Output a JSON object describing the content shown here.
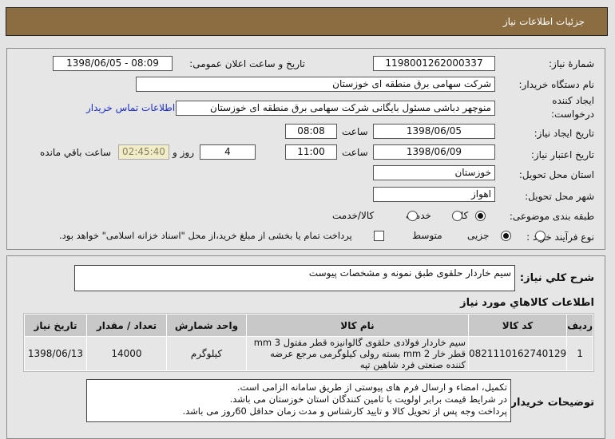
{
  "header": {
    "title": "جزئیات اطلاعات نیاز"
  },
  "form": {
    "need_number_label": "شمارهٔ نیاز:",
    "need_number": "1198001262000337",
    "announce_label": "تاریخ و ساعت اعلان عمومی:",
    "announce_value": "1398/06/05 - 08:09",
    "buyer_label": "نام دستگاه خریدار:",
    "buyer": "شرکت سهامی برق منطقه ای خوزستان",
    "creator_label_1": "ایجاد کننده",
    "creator_label_2": "درخواست:",
    "creator": "منوچهر دباشی مسئول بایگانی شرکت سهامی برق منطقه ای خوزستان",
    "contact_link": "اطلاعات تماس خریدار",
    "created_label": "تاریخ ایجاد نیاز:",
    "created_date": "1398/06/05",
    "time_label": "ساعت",
    "created_time": "08:08",
    "valid_label": "تاریخ اعتبار نیاز:",
    "valid_date": "1398/06/09",
    "valid_time": "11:00",
    "days": "4",
    "days_label": "روز و",
    "remaining": "02:45:40",
    "remaining_label": "ساعت باقي مانده",
    "province_label": "استان محل تحویل:",
    "province": "خوزستان",
    "city_label": "شهر محل تحویل:",
    "city": "اهواز",
    "category_label": "طبقه بندی موضوعی:",
    "category_options": [
      "کالا",
      "خدمت",
      "کالا/خدمت"
    ],
    "category_selected": "کالا",
    "process_label": "نوع فرآیند خرید :",
    "process_options": [
      "جزیی",
      "متوسط"
    ],
    "process_selected": "متوسط",
    "payment_note": "پرداخت تمام یا بخشی از مبلغ خرید،از محل \"اسناد خزانه اسلامی\" خواهد بود.",
    "payment_checked": false
  },
  "summary": {
    "label": "شرح کلي نياز:",
    "text": "سیم خاردار حلقوی طبق نمونه و مشخصات پیوست"
  },
  "goods": {
    "title": "اطلاعات کالاهاي مورد نياز",
    "columns": [
      "ردیف",
      "کد کالا",
      "نام کالا",
      "واحد شمارش",
      "تعداد / مقدار",
      "تاریخ نیاز"
    ],
    "rows": [
      {
        "index": "1",
        "code": "0821110162740129",
        "name": "سیم خاردار فولادی حلقوی گالوانیزه قطر مفتول 3 mm قطر خار 2 mm بسته رولی کیلوگرمی مرجع عرضه کننده صنعتی فرد شاهین تپه",
        "unit": "کیلوگرم",
        "qty": "14000",
        "date": "1398/06/13"
      }
    ]
  },
  "notes": {
    "label": "توضیحات خریدار:",
    "lines": [
      "تکمیل، امضاء و ارسال فرم های پیوستی از طریق سامانه الزامی است.",
      "در شرایط  قیمت برابر اولویت با تامین کنندگان استان خوزستان می باشد.",
      "پرداخت وجه پس از تحویل کالا و تایید کارشناس و مدت زمان حداقل 60روز می باشد."
    ]
  }
}
